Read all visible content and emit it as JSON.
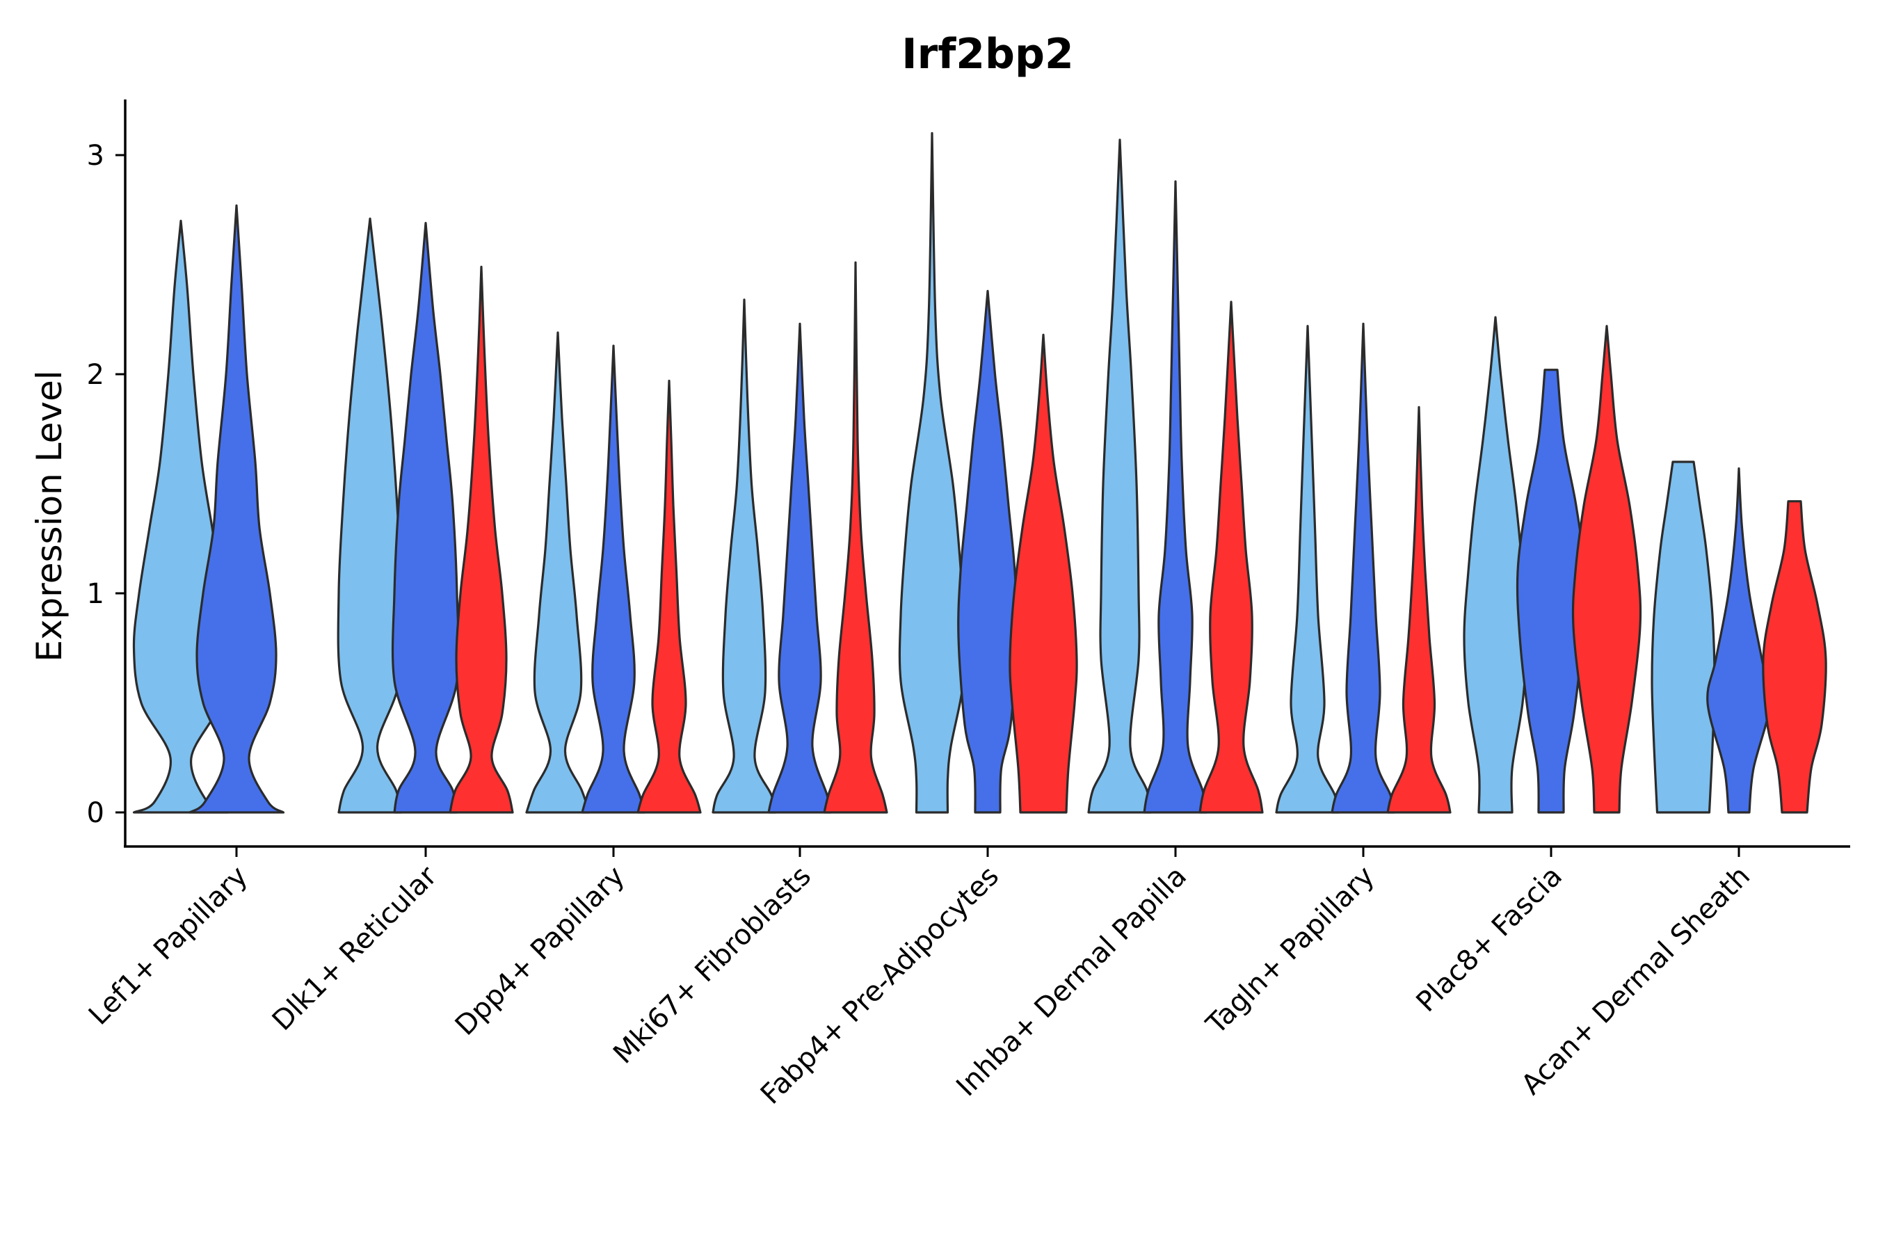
{
  "chart_data": {
    "type": "violin",
    "title": "Irf2bp2",
    "xlabel": "",
    "ylabel": "Expression Level",
    "ylim": [
      -0.16,
      3.27
    ],
    "yticks": [
      0,
      1,
      2,
      3
    ],
    "grid": false,
    "legend": "none",
    "categories": [
      "Lef1+ Papillary",
      "Dlk1+ Reticular",
      "Dpp4+ Papillary",
      "Mki67+ Fibroblasts",
      "Fabp4+ Pre-Adipocytes",
      "Inhba+ Dermal Papilla",
      "Tagln+ Papillary",
      "Plac8+ Fascia",
      "Acan+ Dermal Sheath"
    ],
    "series": [
      {
        "name": "group-1",
        "color": "#7dbfee"
      },
      {
        "name": "group-2",
        "color": "#4570ea"
      },
      {
        "name": "group-3",
        "color": "#ff3030"
      }
    ],
    "violins": [
      {
        "category": 0,
        "series": 0,
        "max": 2.7,
        "base_width": 0.45,
        "profile": [
          [
            0,
            0.45
          ],
          [
            0.05,
            0.25
          ],
          [
            0.25,
            0.1
          ],
          [
            0.5,
            0.38
          ],
          [
            0.75,
            0.45
          ],
          [
            1.0,
            0.4
          ],
          [
            1.3,
            0.3
          ],
          [
            1.6,
            0.2
          ],
          [
            2.0,
            0.12
          ],
          [
            2.4,
            0.06
          ],
          [
            2.7,
            0
          ]
        ]
      },
      {
        "category": 0,
        "series": 1,
        "max": 2.77,
        "base_width": 0.45,
        "profile": [
          [
            0,
            0.45
          ],
          [
            0.05,
            0.3
          ],
          [
            0.25,
            0.12
          ],
          [
            0.5,
            0.32
          ],
          [
            0.72,
            0.38
          ],
          [
            1.0,
            0.32
          ],
          [
            1.3,
            0.22
          ],
          [
            1.6,
            0.18
          ],
          [
            2.0,
            0.1
          ],
          [
            2.4,
            0.05
          ],
          [
            2.77,
            0
          ]
        ]
      },
      {
        "category": 1,
        "series": 0,
        "max": 2.71,
        "base_width": 0.3,
        "profile": [
          [
            0,
            0.3
          ],
          [
            0.1,
            0.25
          ],
          [
            0.3,
            0.07
          ],
          [
            0.6,
            0.28
          ],
          [
            1.0,
            0.3
          ],
          [
            1.4,
            0.26
          ],
          [
            1.8,
            0.2
          ],
          [
            2.2,
            0.12
          ],
          [
            2.5,
            0.05
          ],
          [
            2.71,
            0
          ]
        ]
      },
      {
        "category": 1,
        "series": 1,
        "max": 2.69,
        "base_width": 0.3,
        "profile": [
          [
            0,
            0.3
          ],
          [
            0.1,
            0.26
          ],
          [
            0.28,
            0.1
          ],
          [
            0.6,
            0.3
          ],
          [
            1.0,
            0.3
          ],
          [
            1.4,
            0.26
          ],
          [
            1.7,
            0.2
          ],
          [
            2.0,
            0.14
          ],
          [
            2.3,
            0.07
          ],
          [
            2.69,
            0
          ]
        ]
      },
      {
        "category": 1,
        "series": 2,
        "max": 2.49,
        "base_width": 0.3,
        "profile": [
          [
            0,
            0.3
          ],
          [
            0.1,
            0.25
          ],
          [
            0.25,
            0.1
          ],
          [
            0.45,
            0.2
          ],
          [
            0.7,
            0.24
          ],
          [
            1.0,
            0.2
          ],
          [
            1.3,
            0.13
          ],
          [
            1.7,
            0.07
          ],
          [
            2.1,
            0.03
          ],
          [
            2.49,
            0
          ]
        ]
      },
      {
        "category": 2,
        "series": 0,
        "max": 2.19,
        "base_width": 0.3,
        "profile": [
          [
            0,
            0.3
          ],
          [
            0.1,
            0.23
          ],
          [
            0.28,
            0.07
          ],
          [
            0.55,
            0.22
          ],
          [
            0.9,
            0.18
          ],
          [
            1.2,
            0.12
          ],
          [
            1.5,
            0.08
          ],
          [
            1.8,
            0.04
          ],
          [
            2.19,
            0
          ]
        ]
      },
      {
        "category": 2,
        "series": 1,
        "max": 2.13,
        "base_width": 0.3,
        "profile": [
          [
            0,
            0.3
          ],
          [
            0.08,
            0.25
          ],
          [
            0.28,
            0.1
          ],
          [
            0.6,
            0.2
          ],
          [
            0.9,
            0.16
          ],
          [
            1.2,
            0.1
          ],
          [
            1.5,
            0.06
          ],
          [
            1.8,
            0.03
          ],
          [
            2.13,
            0
          ]
        ]
      },
      {
        "category": 2,
        "series": 2,
        "max": 1.97,
        "base_width": 0.3,
        "profile": [
          [
            0,
            0.3
          ],
          [
            0.08,
            0.25
          ],
          [
            0.25,
            0.1
          ],
          [
            0.5,
            0.16
          ],
          [
            0.8,
            0.1
          ],
          [
            1.1,
            0.07
          ],
          [
            1.4,
            0.04
          ],
          [
            1.7,
            0.02
          ],
          [
            1.97,
            0
          ]
        ]
      },
      {
        "category": 3,
        "series": 0,
        "max": 2.34,
        "base_width": 0.3,
        "profile": [
          [
            0,
            0.3
          ],
          [
            0.08,
            0.26
          ],
          [
            0.25,
            0.1
          ],
          [
            0.55,
            0.2
          ],
          [
            0.9,
            0.18
          ],
          [
            1.2,
            0.13
          ],
          [
            1.5,
            0.07
          ],
          [
            1.9,
            0.03
          ],
          [
            2.34,
            0
          ]
        ]
      },
      {
        "category": 3,
        "series": 1,
        "max": 2.23,
        "base_width": 0.3,
        "profile": [
          [
            0,
            0.3
          ],
          [
            0.08,
            0.26
          ],
          [
            0.3,
            0.12
          ],
          [
            0.6,
            0.2
          ],
          [
            0.9,
            0.16
          ],
          [
            1.2,
            0.12
          ],
          [
            1.5,
            0.08
          ],
          [
            1.8,
            0.04
          ],
          [
            2.23,
            0
          ]
        ]
      },
      {
        "category": 3,
        "series": 2,
        "max": 2.51,
        "base_width": 0.3,
        "profile": [
          [
            0,
            0.3
          ],
          [
            0.08,
            0.26
          ],
          [
            0.25,
            0.15
          ],
          [
            0.45,
            0.18
          ],
          [
            0.7,
            0.16
          ],
          [
            1.0,
            0.1
          ],
          [
            1.3,
            0.05
          ],
          [
            1.7,
            0.02
          ],
          [
            2.51,
            0
          ]
        ]
      },
      {
        "category": 4,
        "series": 0,
        "max": 3.1,
        "base_width": 0.15,
        "profile": [
          [
            0,
            0.15
          ],
          [
            0.15,
            0.15
          ],
          [
            0.3,
            0.18
          ],
          [
            0.6,
            0.3
          ],
          [
            0.9,
            0.3
          ],
          [
            1.2,
            0.26
          ],
          [
            1.5,
            0.2
          ],
          [
            1.9,
            0.08
          ],
          [
            2.3,
            0.03
          ],
          [
            3.1,
            0
          ]
        ]
      },
      {
        "category": 4,
        "series": 1,
        "max": 2.38,
        "base_width": 0.12,
        "profile": [
          [
            0,
            0.12
          ],
          [
            0.2,
            0.13
          ],
          [
            0.4,
            0.22
          ],
          [
            0.8,
            0.28
          ],
          [
            1.1,
            0.26
          ],
          [
            1.4,
            0.2
          ],
          [
            1.7,
            0.14
          ],
          [
            2.0,
            0.07
          ],
          [
            2.38,
            0
          ]
        ]
      },
      {
        "category": 4,
        "series": 2,
        "max": 2.18,
        "base_width": 0.22,
        "profile": [
          [
            0,
            0.22
          ],
          [
            0.2,
            0.24
          ],
          [
            0.5,
            0.3
          ],
          [
            0.7,
            0.32
          ],
          [
            1.0,
            0.28
          ],
          [
            1.3,
            0.2
          ],
          [
            1.6,
            0.1
          ],
          [
            1.9,
            0.04
          ],
          [
            2.18,
            0
          ]
        ]
      },
      {
        "category": 5,
        "series": 0,
        "max": 3.07,
        "base_width": 0.3,
        "profile": [
          [
            0,
            0.3
          ],
          [
            0.1,
            0.26
          ],
          [
            0.3,
            0.1
          ],
          [
            0.7,
            0.18
          ],
          [
            1.0,
            0.18
          ],
          [
            1.5,
            0.16
          ],
          [
            2.0,
            0.11
          ],
          [
            2.4,
            0.06
          ],
          [
            3.07,
            0
          ]
        ]
      },
      {
        "category": 5,
        "series": 1,
        "max": 2.88,
        "base_width": 0.3,
        "profile": [
          [
            0,
            0.3
          ],
          [
            0.1,
            0.26
          ],
          [
            0.3,
            0.12
          ],
          [
            0.6,
            0.14
          ],
          [
            0.9,
            0.16
          ],
          [
            1.2,
            0.1
          ],
          [
            1.6,
            0.06
          ],
          [
            2.0,
            0.04
          ],
          [
            2.88,
            0
          ]
        ]
      },
      {
        "category": 5,
        "series": 2,
        "max": 2.33,
        "base_width": 0.3,
        "profile": [
          [
            0,
            0.3
          ],
          [
            0.1,
            0.26
          ],
          [
            0.3,
            0.12
          ],
          [
            0.6,
            0.18
          ],
          [
            0.9,
            0.2
          ],
          [
            1.2,
            0.14
          ],
          [
            1.5,
            0.1
          ],
          [
            1.8,
            0.06
          ],
          [
            2.33,
            0
          ]
        ]
      },
      {
        "category": 6,
        "series": 0,
        "max": 2.22,
        "base_width": 0.3,
        "profile": [
          [
            0,
            0.3
          ],
          [
            0.08,
            0.26
          ],
          [
            0.25,
            0.1
          ],
          [
            0.5,
            0.16
          ],
          [
            0.9,
            0.1
          ],
          [
            1.3,
            0.07
          ],
          [
            1.7,
            0.04
          ],
          [
            2.22,
            0
          ]
        ]
      },
      {
        "category": 6,
        "series": 1,
        "max": 2.23,
        "base_width": 0.3,
        "profile": [
          [
            0,
            0.3
          ],
          [
            0.08,
            0.26
          ],
          [
            0.25,
            0.12
          ],
          [
            0.55,
            0.16
          ],
          [
            0.9,
            0.12
          ],
          [
            1.3,
            0.08
          ],
          [
            1.7,
            0.04
          ],
          [
            2.23,
            0
          ]
        ]
      },
      {
        "category": 6,
        "series": 2,
        "max": 1.85,
        "base_width": 0.3,
        "profile": [
          [
            0,
            0.3
          ],
          [
            0.08,
            0.26
          ],
          [
            0.25,
            0.12
          ],
          [
            0.5,
            0.15
          ],
          [
            0.8,
            0.1
          ],
          [
            1.1,
            0.06
          ],
          [
            1.4,
            0.03
          ],
          [
            1.85,
            0
          ]
        ]
      },
      {
        "category": 7,
        "series": 0,
        "max": 2.26,
        "base_width": 0.16,
        "profile": [
          [
            0,
            0.16
          ],
          [
            0.2,
            0.16
          ],
          [
            0.5,
            0.26
          ],
          [
            0.8,
            0.3
          ],
          [
            1.1,
            0.26
          ],
          [
            1.4,
            0.2
          ],
          [
            1.7,
            0.12
          ],
          [
            2.0,
            0.05
          ],
          [
            2.26,
            0
          ]
        ]
      },
      {
        "category": 7,
        "series": 1,
        "max": 2.02,
        "base_width": 0.12,
        "profile": [
          [
            0,
            0.12
          ],
          [
            0.2,
            0.13
          ],
          [
            0.45,
            0.22
          ],
          [
            0.8,
            0.3
          ],
          [
            1.1,
            0.32
          ],
          [
            1.4,
            0.24
          ],
          [
            1.7,
            0.12
          ],
          [
            2.02,
            0.06
          ]
        ]
      },
      {
        "category": 7,
        "series": 2,
        "max": 2.22,
        "base_width": 0.12,
        "profile": [
          [
            0,
            0.12
          ],
          [
            0.2,
            0.14
          ],
          [
            0.5,
            0.24
          ],
          [
            0.85,
            0.32
          ],
          [
            1.1,
            0.3
          ],
          [
            1.4,
            0.22
          ],
          [
            1.7,
            0.1
          ],
          [
            2.0,
            0.04
          ],
          [
            2.22,
            0
          ]
        ]
      },
      {
        "category": 8,
        "series": 0,
        "max": 1.6,
        "base_width": 0.25,
        "profile": [
          [
            0,
            0.25
          ],
          [
            0.3,
            0.28
          ],
          [
            0.6,
            0.3
          ],
          [
            0.9,
            0.28
          ],
          [
            1.2,
            0.22
          ],
          [
            1.4,
            0.16
          ],
          [
            1.6,
            0.1
          ]
        ]
      },
      {
        "category": 8,
        "series": 1,
        "max": 1.57,
        "base_width": 0.1,
        "profile": [
          [
            0,
            0.1
          ],
          [
            0.2,
            0.14
          ],
          [
            0.5,
            0.3
          ],
          [
            0.7,
            0.22
          ],
          [
            1.0,
            0.1
          ],
          [
            1.3,
            0.03
          ],
          [
            1.57,
            0
          ]
        ]
      },
      {
        "category": 8,
        "series": 2,
        "max": 1.42,
        "base_width": 0.12,
        "profile": [
          [
            0,
            0.12
          ],
          [
            0.2,
            0.16
          ],
          [
            0.4,
            0.26
          ],
          [
            0.7,
            0.3
          ],
          [
            0.95,
            0.22
          ],
          [
            1.2,
            0.1
          ],
          [
            1.42,
            0.06
          ]
        ]
      }
    ]
  }
}
